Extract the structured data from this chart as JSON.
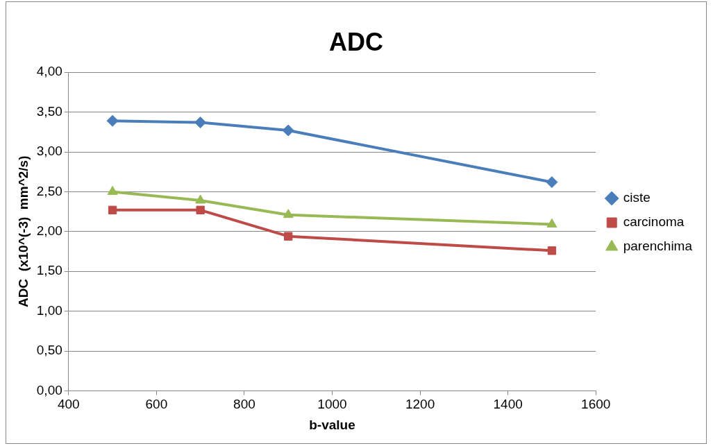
{
  "chart_data": {
    "type": "line",
    "title": "ADC",
    "xlabel": "b-value",
    "ylabel": "ADC  (x10^(-3)  mm^2/s)",
    "x": [
      500,
      700,
      900,
      1500
    ],
    "series": [
      {
        "name": "ciste",
        "color": "#4a7ebb",
        "marker": "diamond",
        "values": [
          3.39,
          3.37,
          3.27,
          2.62
        ]
      },
      {
        "name": "carcinoma",
        "color": "#be4b48",
        "marker": "square",
        "values": [
          2.27,
          2.27,
          1.94,
          1.76
        ]
      },
      {
        "name": "parenchima",
        "color": "#98b954",
        "marker": "triangle",
        "values": [
          2.5,
          2.39,
          2.21,
          2.09
        ]
      }
    ],
    "xlim": [
      400,
      1600
    ],
    "xticks": [
      400,
      600,
      800,
      1000,
      1200,
      1400,
      1600
    ],
    "ylim": [
      0,
      4
    ],
    "yticks": [
      {
        "value": 0,
        "label": "0,00"
      },
      {
        "value": 0.5,
        "label": "0,50"
      },
      {
        "value": 1,
        "label": "1,00"
      },
      {
        "value": 1.5,
        "label": "1,50"
      },
      {
        "value": 2,
        "label": "2,00"
      },
      {
        "value": 2.5,
        "label": "2,50"
      },
      {
        "value": 3,
        "label": "3,00"
      },
      {
        "value": 3.5,
        "label": "3,50"
      },
      {
        "value": 4,
        "label": "4,00"
      }
    ],
    "grid": "y",
    "legend": "right",
    "line_style": "solid"
  }
}
